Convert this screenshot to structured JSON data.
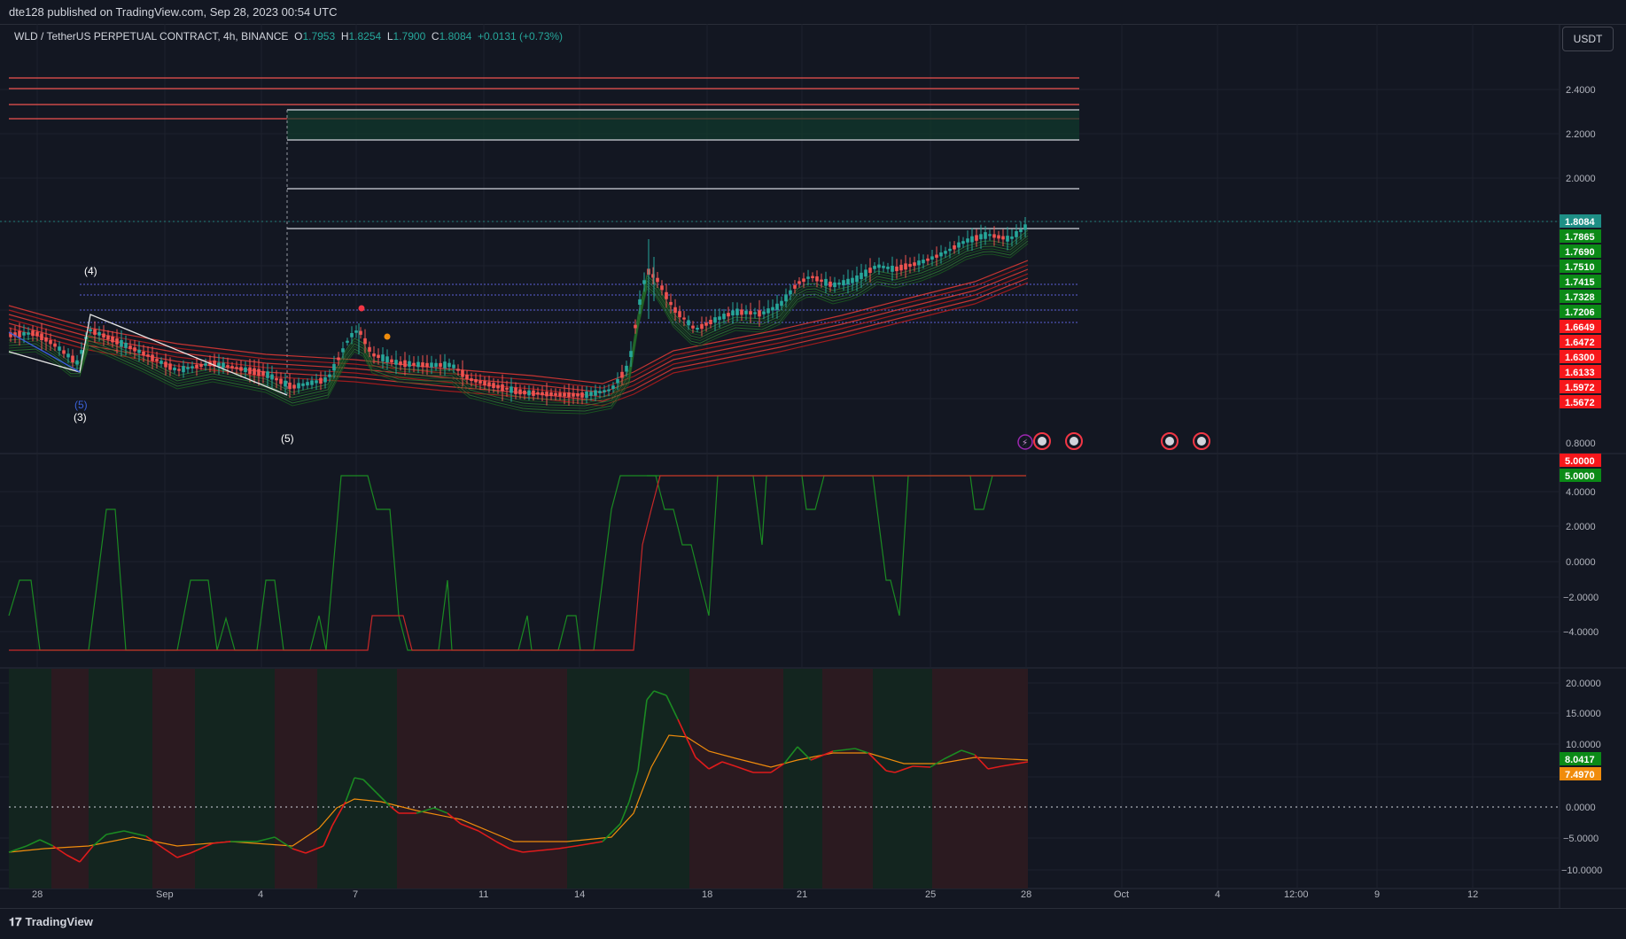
{
  "header": {
    "published": "dte128 published on TradingView.com, Sep 28, 2023 00:54 UTC"
  },
  "symbol": {
    "name": "WLD / TetherUS PERPETUAL CONTRACT, 4h, BINANCE",
    "o_label": "O",
    "o": "1.7953",
    "h_label": "H",
    "h": "1.8254",
    "l_label": "L",
    "l": "1.7900",
    "c_label": "C",
    "c": "1.8084",
    "change": "+0.0131 (+0.73%)"
  },
  "currency_button": "USDT",
  "colors": {
    "up": "#26a69a",
    "down": "#ef5350",
    "green_badge": "#0b8a17",
    "red_badge": "#f7171b",
    "teal_badge": "#1e8f86",
    "orange": "#f08c0c",
    "background": "#131722"
  },
  "price_axis": {
    "ticks": [
      "2.4000",
      "2.2000",
      "2.0000",
      "0.8000"
    ],
    "badges": [
      {
        "value": "1.8084",
        "color": "teal"
      },
      {
        "value": "1.7865",
        "color": "green"
      },
      {
        "value": "1.7690",
        "color": "green"
      },
      {
        "value": "1.7510",
        "color": "green"
      },
      {
        "value": "1.7415",
        "color": "green"
      },
      {
        "value": "1.7328",
        "color": "green"
      },
      {
        "value": "1.7206",
        "color": "green"
      },
      {
        "value": "1.6649",
        "color": "red"
      },
      {
        "value": "1.6472",
        "color": "red"
      },
      {
        "value": "1.6300",
        "color": "red"
      },
      {
        "value": "1.6133",
        "color": "red"
      },
      {
        "value": "1.5972",
        "color": "red"
      },
      {
        "value": "1.5672",
        "color": "red"
      }
    ]
  },
  "wave_labels": {
    "w4": "(4)",
    "w5a": "(5)",
    "w3": "(3)",
    "w5b": "(5)"
  },
  "osc1_axis": {
    "ticks": [
      "4.0000",
      "2.0000",
      "0.0000",
      "−2.0000",
      "−4.0000"
    ],
    "badges": [
      {
        "value": "5.0000",
        "color": "red"
      },
      {
        "value": "5.0000",
        "color": "green"
      }
    ]
  },
  "osc2_axis": {
    "ticks": [
      "20.0000",
      "15.0000",
      "10.0000",
      "0.0000",
      "−5.0000",
      "−10.0000"
    ],
    "badges": [
      {
        "value": "8.0417",
        "color": "green"
      },
      {
        "value": "7.4970",
        "color": "orange"
      }
    ]
  },
  "time_axis": [
    "28",
    "Sep",
    "4",
    "7",
    "11",
    "14",
    "18",
    "21",
    "25",
    "28",
    "Oct",
    "4",
    "12:00",
    "9",
    "12"
  ],
  "footer": {
    "brand": "TradingView"
  }
}
